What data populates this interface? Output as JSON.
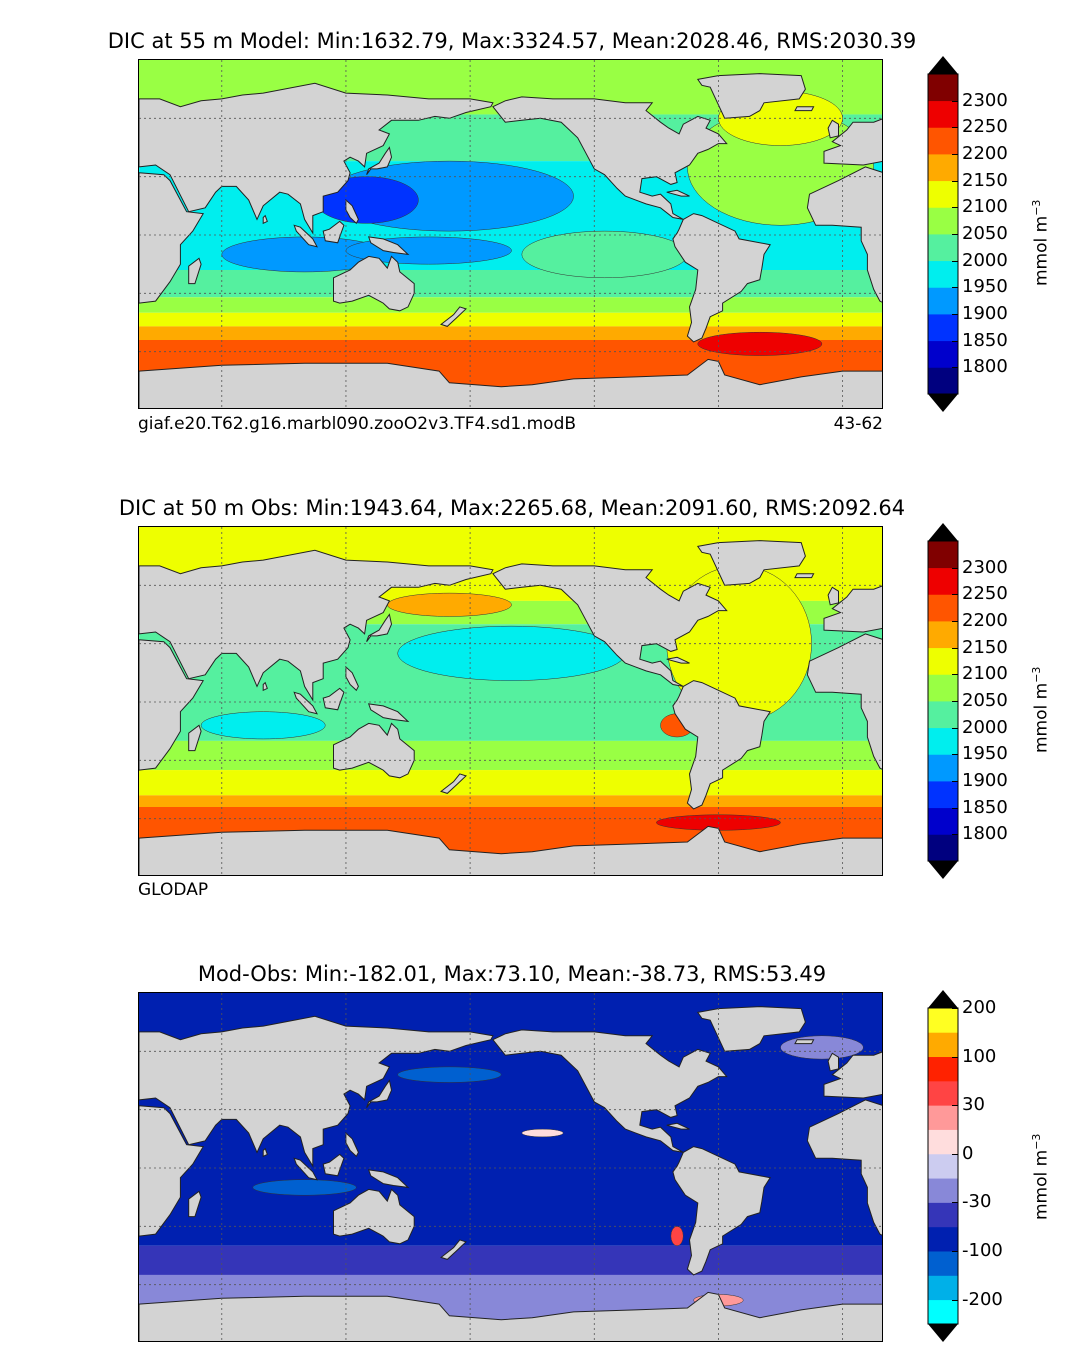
{
  "colors": {
    "land": "#d3d3d3",
    "grid": "#555555",
    "abs_scale": [
      "#00007f",
      "#0000cc",
      "#0033ff",
      "#0099ff",
      "#00eeee",
      "#55f09f",
      "#99ff44",
      "#eeff00",
      "#ffaa00",
      "#ff5500",
      "#ee0000",
      "#800000"
    ],
    "diff_scale": [
      "#00ffff",
      "#00b0e8",
      "#0060d0",
      "#0020b0",
      "#3535b8",
      "#8888d8",
      "#ccccf0",
      "#ffdddd",
      "#ff9999",
      "#ff4444",
      "#ff2200",
      "#ffaa00",
      "#ffff22"
    ]
  },
  "chart_data": [
    {
      "type": "heatmap",
      "title": "DIC at 55 m Model: Min:1632.79, Max:3324.57, Mean:2028.46, RMS:2030.39",
      "caption_left": "giaf.e20.T62.g16.marbl090.zooO2v3.TF4.sd1.modB",
      "caption_right": "43-62",
      "stats": {
        "min": 1632.79,
        "max": 3324.57,
        "mean": 2028.46,
        "rms": 2030.39
      },
      "depth": "55 m",
      "colorbar": {
        "levels": [
          1750,
          1800,
          1850,
          1900,
          1950,
          2000,
          2050,
          2100,
          2150,
          2200,
          2250,
          2300,
          2350
        ],
        "tick_labels": [
          "2300",
          "2250",
          "2200",
          "2150",
          "2100",
          "2050",
          "2000",
          "1950",
          "1900",
          "1850",
          "1800"
        ],
        "units": "mmol m",
        "units_exp": "−3"
      }
    },
    {
      "type": "heatmap",
      "title": "DIC at 50 m Obs: Min:1943.64, Max:2265.68, Mean:2091.60, RMS:2092.64",
      "caption_left": "GLODAP",
      "caption_right": "",
      "stats": {
        "min": 1943.64,
        "max": 2265.68,
        "mean": 2091.6,
        "rms": 2092.64
      },
      "depth": "50 m",
      "colorbar": {
        "levels": [
          1750,
          1800,
          1850,
          1900,
          1950,
          2000,
          2050,
          2100,
          2150,
          2200,
          2250,
          2300,
          2350
        ],
        "tick_labels": [
          "2300",
          "2250",
          "2200",
          "2150",
          "2100",
          "2050",
          "2000",
          "1950",
          "1900",
          "1850",
          "1800"
        ],
        "units": "mmol m",
        "units_exp": "−3"
      }
    },
    {
      "type": "heatmap",
      "title": "Mod-Obs: Min:-182.01, Max:73.10, Mean:-38.73, RMS:53.49",
      "caption_left": "",
      "caption_right": "",
      "stats": {
        "min": -182.01,
        "max": 73.1,
        "mean": -38.73,
        "rms": 53.49
      },
      "colorbar": {
        "levels": [
          -250,
          -200,
          -150,
          -100,
          -50,
          -30,
          -10,
          0,
          10,
          30,
          50,
          100,
          150,
          200
        ],
        "tick_labels": [
          "200",
          "100",
          "30",
          "0",
          "-30",
          "-100",
          "-200"
        ],
        "units": "mmol m",
        "units_exp": "−3"
      }
    }
  ]
}
